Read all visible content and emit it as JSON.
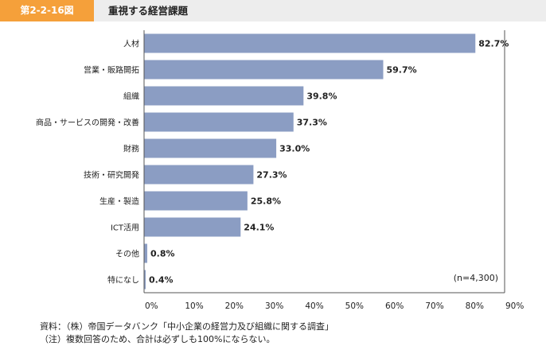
{
  "header": {
    "figure_label": "第2-2-16図",
    "figure_title": "重視する経営課題"
  },
  "chart_data": {
    "type": "bar",
    "orientation": "horizontal",
    "categories": [
      "人材",
      "営業・販路開拓",
      "組織",
      "商品・サービスの開発・改善",
      "財務",
      "技術・研究開発",
      "生産・製造",
      "ICT活用",
      "その他",
      "特になし"
    ],
    "values": [
      82.7,
      59.7,
      39.8,
      37.3,
      33.0,
      27.3,
      25.8,
      24.1,
      0.8,
      0.4
    ],
    "value_labels": [
      "82.7%",
      "59.7%",
      "39.8%",
      "37.3%",
      "33.0%",
      "27.3%",
      "25.8%",
      "24.1%",
      "0.8%",
      "0.4%"
    ],
    "xlim": [
      0,
      90
    ],
    "x_ticks": [
      0,
      10,
      20,
      30,
      40,
      50,
      60,
      70,
      80,
      90
    ],
    "x_tick_labels": [
      "0%",
      "10%",
      "20%",
      "30%",
      "40%",
      "50%",
      "60%",
      "70%",
      "80%",
      "90%"
    ],
    "annotation": "(n=4,300)",
    "grid": false,
    "bar_color": "#8b9dc3",
    "axis_color": "#555555"
  },
  "footer": {
    "source": "資料：（株）帝国データバンク「中小企業の経営力及び組織に関する調査」",
    "note": "（注）複数回答のため、合計は必ずしも100%にならない。"
  }
}
